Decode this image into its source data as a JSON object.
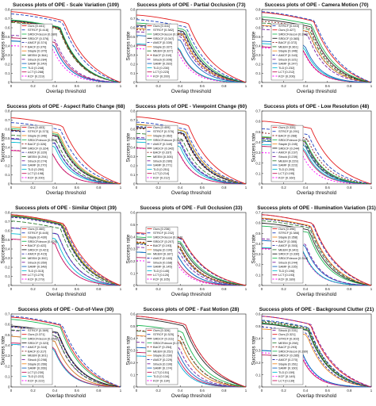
{
  "axis": {
    "xlabel": "Overlap threshold",
    "ylabel": "Success rate",
    "x_ticks": [
      "0",
      "0.2",
      "0.4",
      "0.6",
      "0.8",
      "1"
    ]
  },
  "styles": {
    "Ours": {
      "color": "#e41a1c",
      "dash": ""
    },
    "STRCF": {
      "color": "#1f3fbf",
      "dash": "4,2"
    },
    "SRDCFdecon": {
      "color": "#1db954",
      "dash": ""
    },
    "SRDCF": {
      "color": "#222222",
      "dash": ""
    },
    "AMCF": {
      "color": "#2a2aa8",
      "dash": "3,2"
    },
    "BACF": {
      "color": "#8b1a1a",
      "dash": "2,2"
    },
    "Staple": {
      "color": "#f08a24",
      "dash": ""
    },
    "MEEM": {
      "color": "#2e7d32",
      "dash": "5,2"
    },
    "Struck": {
      "color": "#7b1fa2",
      "dash": "4,2"
    },
    "SAMF": {
      "color": "#1565c0",
      "dash": ""
    },
    "TLD": {
      "color": "#00bcd4",
      "dash": ""
    },
    "LCT": {
      "color": "#c2185b",
      "dash": ""
    },
    "KCF": {
      "color": "#ff00ff",
      "dash": "2,2"
    }
  },
  "chart_data": [
    {
      "type": "line",
      "title": "Success plots of OPE - Scale Variation (109)",
      "ylim": [
        0,
        0.8
      ],
      "y_ticks": [
        "0",
        "0.1",
        "0.2",
        "0.3",
        "0.4",
        "0.5",
        "0.6",
        "0.7",
        "0.8"
      ],
      "legend": "bottom-left",
      "series": [
        {
          "name": "Ours",
          "score": "0.441"
        },
        {
          "name": "STRCF",
          "score": "0.418"
        },
        {
          "name": "SRDCFdecon",
          "score": "0.380"
        },
        {
          "name": "SRDCF",
          "score": "0.376"
        },
        {
          "name": "AMCF",
          "score": "0.374"
        },
        {
          "name": "BACF",
          "score": "0.370"
        },
        {
          "name": "Staple",
          "score": "0.370"
        },
        {
          "name": "MEEM",
          "score": "0.364"
        },
        {
          "name": "Struck",
          "score": "0.284"
        },
        {
          "name": "SAMF",
          "score": "0.249"
        },
        {
          "name": "TLD",
          "score": "0.248"
        },
        {
          "name": "LCT",
          "score": "0.268"
        },
        {
          "name": "KCF",
          "score": "0.219"
        }
      ]
    },
    {
      "type": "line",
      "title": "Success plots of OPE - Partial Occlusion (73)",
      "ylim": [
        0,
        0.8
      ],
      "y_ticks": [
        "0",
        "0.1",
        "0.2",
        "0.3",
        "0.4",
        "0.5",
        "0.6",
        "0.7",
        "0.8"
      ],
      "legend": "bottom-left",
      "series": [
        {
          "name": "Ours",
          "score": "0.411"
        },
        {
          "name": "STRCF",
          "score": "0.382"
        },
        {
          "name": "SRDCFdecon",
          "score": "0.361"
        },
        {
          "name": "SRDCF",
          "score": "0.347"
        },
        {
          "name": "AMCF",
          "score": "0.339"
        },
        {
          "name": "Staple",
          "score": "0.327"
        },
        {
          "name": "MEEM",
          "score": "0.327"
        },
        {
          "name": "BACF",
          "score": "0.319"
        },
        {
          "name": "Struck",
          "score": "0.306"
        },
        {
          "name": "SAMF",
          "score": "0.283"
        },
        {
          "name": "TLD",
          "score": "0.230"
        },
        {
          "name": "LCT",
          "score": "0.223"
        },
        {
          "name": "KCF",
          "score": "0.200"
        }
      ]
    },
    {
      "type": "line",
      "title": "Success plots of OPE - Camera Motion (70)",
      "ylim": [
        0,
        0.8
      ],
      "y_ticks": [
        "0",
        "0.1",
        "0.2",
        "0.3",
        "0.4",
        "0.5",
        "0.6",
        "0.7",
        "0.8"
      ],
      "legend": "bottom-left",
      "series": [
        {
          "name": "STRCF",
          "score": "0.443"
        },
        {
          "name": "Ours",
          "score": "0.427"
        },
        {
          "name": "SRDCFdecon",
          "score": "0.399"
        },
        {
          "name": "SRDCF",
          "score": "0.383"
        },
        {
          "name": "BACF",
          "score": "0.372"
        },
        {
          "name": "MEEM",
          "score": "0.361"
        },
        {
          "name": "Staple",
          "score": "0.346"
        },
        {
          "name": "AMCF",
          "score": "0.343"
        },
        {
          "name": "Struck",
          "score": "0.321"
        },
        {
          "name": "SAMF",
          "score": "0.247"
        },
        {
          "name": "TLD",
          "score": "0.232"
        },
        {
          "name": "LCT",
          "score": "0.212"
        },
        {
          "name": "KCF",
          "score": "0.206"
        }
      ]
    },
    {
      "type": "line",
      "title": "Success plots of OPE - Aspect Ratio Change (68)",
      "ylim": [
        0,
        0.8
      ],
      "y_ticks": [
        "0",
        "0.1",
        "0.2",
        "0.3",
        "0.4",
        "0.5",
        "0.6",
        "0.7",
        "0.8"
      ],
      "legend": "bottom-left",
      "series": [
        {
          "name": "Ours",
          "score": "0.403"
        },
        {
          "name": "STRCF",
          "score": "0.373"
        },
        {
          "name": "Staple",
          "score": "0.346"
        },
        {
          "name": "SRDCFdecon",
          "score": "0.335"
        },
        {
          "name": "BACF",
          "score": "0.326"
        },
        {
          "name": "SRDCF",
          "score": "0.324"
        },
        {
          "name": "AMCF",
          "score": "0.320"
        },
        {
          "name": "MEEM",
          "score": "0.294"
        },
        {
          "name": "Struck",
          "score": "0.274"
        },
        {
          "name": "SAMF",
          "score": "0.270"
        },
        {
          "name": "TLD",
          "score": "0.250"
        },
        {
          "name": "LCT",
          "score": "0.198"
        },
        {
          "name": "KCF",
          "score": "0.200"
        }
      ]
    },
    {
      "type": "line",
      "title": "Success plots of OPE - Viewpoint Change (60)",
      "ylim": [
        0,
        0.8
      ],
      "y_ticks": [
        "0",
        "0.1",
        "0.2",
        "0.3",
        "0.4",
        "0.5",
        "0.6",
        "0.7",
        "0.8"
      ],
      "legend": "bottom-left",
      "series": [
        {
          "name": "Ours",
          "score": "0.409"
        },
        {
          "name": "STRCF",
          "score": "0.376"
        },
        {
          "name": "Staple",
          "score": "0.362"
        },
        {
          "name": "SRDCFdecon",
          "score": "0.360"
        },
        {
          "name": "AMCF",
          "score": "0.349"
        },
        {
          "name": "SRDCF",
          "score": "0.342"
        },
        {
          "name": "BACF",
          "score": "0.337"
        },
        {
          "name": "MEEM",
          "score": "0.305"
        },
        {
          "name": "Struck",
          "score": "0.280"
        },
        {
          "name": "SAMF",
          "score": "0.271"
        },
        {
          "name": "TLD",
          "score": "0.251"
        },
        {
          "name": "LCT",
          "score": "0.214"
        },
        {
          "name": "KCF",
          "score": "0.212"
        }
      ]
    },
    {
      "type": "line",
      "title": "Success plots of OPE - Low Resolution (48)",
      "ylim": [
        0,
        0.7
      ],
      "y_ticks": [
        "0",
        "0.1",
        "0.2",
        "0.3",
        "0.4",
        "0.5",
        "0.6",
        "0.7"
      ],
      "legend": "bottom-left",
      "series": [
        {
          "name": "Ours",
          "score": "0.333"
        },
        {
          "name": "STRCF",
          "score": "0.291"
        },
        {
          "name": "BACF",
          "score": "0.268"
        },
        {
          "name": "SRDCFdecon",
          "score": "0.247"
        },
        {
          "name": "Staple",
          "score": "0.245"
        },
        {
          "name": "SRDCF",
          "score": "0.244"
        },
        {
          "name": "AMCF",
          "score": "0.237"
        },
        {
          "name": "Struck",
          "score": "0.239"
        },
        {
          "name": "MEEM",
          "score": "0.229"
        },
        {
          "name": "SAMF",
          "score": "0.223"
        },
        {
          "name": "TLD",
          "score": "0.205"
        },
        {
          "name": "LCT",
          "score": "0.195"
        },
        {
          "name": "KCF",
          "score": "0.160"
        }
      ]
    },
    {
      "type": "line",
      "title": "Success plots of OPE - Similar Object (39)",
      "ylim": [
        0,
        0.8
      ],
      "y_ticks": [
        "0",
        "0.1",
        "0.2",
        "0.3",
        "0.4",
        "0.5",
        "0.6",
        "0.7",
        "0.8"
      ],
      "legend": "bottom-left",
      "series": [
        {
          "name": "Ours",
          "score": "0.460"
        },
        {
          "name": "STRCF",
          "score": "0.445"
        },
        {
          "name": "Staple",
          "score": "0.430"
        },
        {
          "name": "SRDCFdecon",
          "score": "0.425"
        },
        {
          "name": "BACF",
          "score": "0.422"
        },
        {
          "name": "SRDCF",
          "score": "0.421"
        },
        {
          "name": "AMCF",
          "score": "0.415"
        },
        {
          "name": "MEEM",
          "score": "0.392"
        },
        {
          "name": "Struck",
          "score": "0.350"
        },
        {
          "name": "SAMF",
          "score": "0.348"
        },
        {
          "name": "TLD",
          "score": "0.313"
        },
        {
          "name": "LCT",
          "score": "0.279"
        },
        {
          "name": "KCF",
          "score": "0.279"
        }
      ]
    },
    {
      "type": "line",
      "title": "Success plots of OPE - Full Occlusion (33)",
      "ylim": [
        0,
        0.6
      ],
      "y_ticks": [
        "0",
        "0.1",
        "0.2",
        "0.3",
        "0.4",
        "0.5",
        "0.6"
      ],
      "legend": "bottom-left",
      "series": [
        {
          "name": "Ours",
          "score": "0.236"
        },
        {
          "name": "STRCF",
          "score": "0.232"
        },
        {
          "name": "SRDCFdecon",
          "score": "0.216"
        },
        {
          "name": "SRDCF",
          "score": "0.207"
        },
        {
          "name": "BACF",
          "score": "0.193"
        },
        {
          "name": "Staple",
          "score": "0.190"
        },
        {
          "name": "MEEM",
          "score": "0.187"
        },
        {
          "name": "AMCF",
          "score": "0.183"
        },
        {
          "name": "Struck",
          "score": "0.168"
        },
        {
          "name": "SAMF",
          "score": "0.145"
        },
        {
          "name": "TLD",
          "score": "0.145"
        },
        {
          "name": "LCT",
          "score": "0.120"
        },
        {
          "name": "KCF",
          "score": "0.105"
        }
      ]
    },
    {
      "type": "line",
      "title": "Success plots of OPE - Illumination Variation (31)",
      "ylim": [
        0,
        0.7
      ],
      "y_ticks": [
        "0",
        "0.1",
        "0.2",
        "0.3",
        "0.4",
        "0.5",
        "0.6",
        "0.7"
      ],
      "legend": "bottom-left",
      "series": [
        {
          "name": "Ours",
          "score": "0.396"
        },
        {
          "name": "STRCF",
          "score": "0.386"
        },
        {
          "name": "Staple",
          "score": "0.358"
        },
        {
          "name": "BACF",
          "score": "0.355"
        },
        {
          "name": "AMCF",
          "score": "0.353"
        },
        {
          "name": "MEEM",
          "score": "0.343"
        },
        {
          "name": "SRDCF",
          "score": "0.330"
        },
        {
          "name": "SRDCFdecon",
          "score": "0.314"
        },
        {
          "name": "Struck",
          "score": "0.244"
        },
        {
          "name": "SAMF",
          "score": "0.235"
        },
        {
          "name": "TLD",
          "score": "0.196"
        },
        {
          "name": "LCT",
          "score": "0.193"
        },
        {
          "name": "KCF",
          "score": "0.189"
        }
      ]
    },
    {
      "type": "line",
      "title": "Success plots of OPE - Out-of-View (30)",
      "ylim": [
        0,
        0.7
      ],
      "y_ticks": [
        "0",
        "0.1",
        "0.2",
        "0.3",
        "0.4",
        "0.5",
        "0.6",
        "0.7"
      ],
      "legend": "bottom-left",
      "series": [
        {
          "name": "STRCF",
          "score": "0.389"
        },
        {
          "name": "Ours",
          "score": "0.371"
        },
        {
          "name": "SRDCFdecon",
          "score": "0.359"
        },
        {
          "name": "SRDCF",
          "score": "0.323"
        },
        {
          "name": "AMCF",
          "score": "0.318"
        },
        {
          "name": "BACF",
          "score": "0.317"
        },
        {
          "name": "MEEM",
          "score": "0.301"
        },
        {
          "name": "Struck",
          "score": "0.298"
        },
        {
          "name": "Staple",
          "score": "0.266"
        },
        {
          "name": "SAMF",
          "score": "0.266"
        },
        {
          "name": "LCT",
          "score": "0.230"
        },
        {
          "name": "TLD",
          "score": "0.222"
        },
        {
          "name": "KCF",
          "score": "0.222"
        }
      ]
    },
    {
      "type": "line",
      "title": "Success plots of OPE - Fast Motion (28)",
      "ylim": [
        0,
        0.6
      ],
      "y_ticks": [
        "0",
        "0.1",
        "0.2",
        "0.3",
        "0.4",
        "0.5",
        "0.6"
      ],
      "legend": "bottom-left",
      "series": [
        {
          "name": "Ours",
          "score": "0.326"
        },
        {
          "name": "STRCF",
          "score": "0.325"
        },
        {
          "name": "SRDCF",
          "score": "0.311"
        },
        {
          "name": "SRDCFdecon",
          "score": "0.278"
        },
        {
          "name": "BACF",
          "score": "0.254"
        },
        {
          "name": "MEEM",
          "score": "0.252"
        },
        {
          "name": "Staple",
          "score": "0.230"
        },
        {
          "name": "AMCF",
          "score": "0.229"
        },
        {
          "name": "Struck",
          "score": "0.199"
        },
        {
          "name": "SAMF",
          "score": "0.174"
        },
        {
          "name": "LCT",
          "score": "0.151"
        },
        {
          "name": "TLD",
          "score": "0.134"
        },
        {
          "name": "KCF",
          "score": "0.134"
        }
      ]
    },
    {
      "type": "line",
      "title": "Success plots of OPE - Background Clutter (21)",
      "ylim": [
        0,
        0.6
      ],
      "y_ticks": [
        "0",
        "0.1",
        "0.2",
        "0.3",
        "0.4",
        "0.5",
        "0.6"
      ],
      "legend": "bottom-left",
      "series": [
        {
          "name": "Struck",
          "score": "0.331"
        },
        {
          "name": "Ours",
          "score": "0.321"
        },
        {
          "name": "STRCF",
          "score": "0.302"
        },
        {
          "name": "MEEM",
          "score": "0.298"
        },
        {
          "name": "BACF",
          "score": "0.293"
        },
        {
          "name": "SRDCFdecon",
          "score": "0.289"
        },
        {
          "name": "SRDCF",
          "score": "0.285"
        },
        {
          "name": "AMCF",
          "score": "0.270"
        },
        {
          "name": "Staple",
          "score": "0.261"
        },
        {
          "name": "SAMF",
          "score": "0.160"
        },
        {
          "name": "TLD",
          "score": "0.159"
        },
        {
          "name": "KCF",
          "score": "0.149"
        },
        {
          "name": "LCT",
          "score": "0.139"
        }
      ]
    }
  ]
}
